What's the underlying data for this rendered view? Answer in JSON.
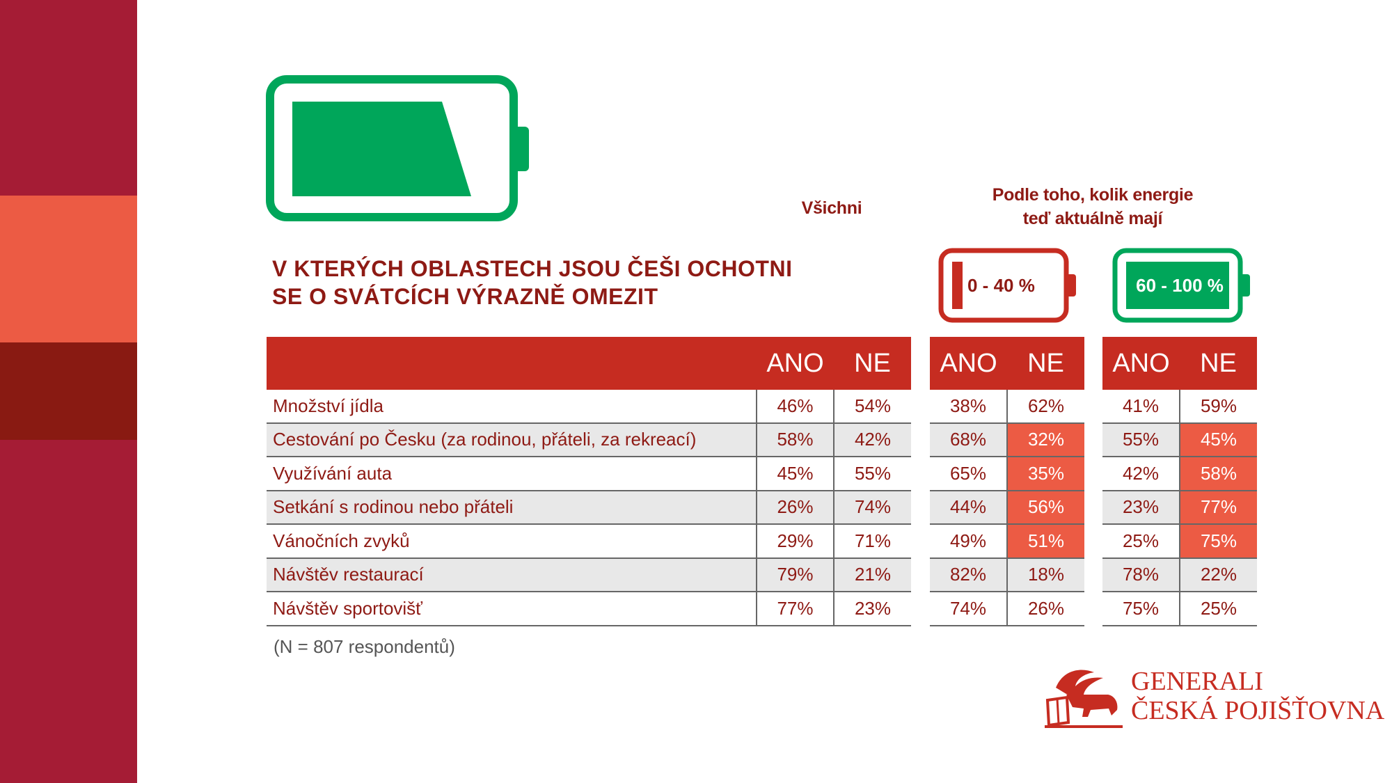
{
  "colors": {
    "sidebar_red": "#A51C35",
    "sidebar_coral": "#EC5B44",
    "sidebar_dark": "#891A12",
    "battery_green": "#00A65A",
    "header_red": "#C62C21",
    "text_dark_red": "#8E1A14",
    "highlight": "#EC5B44",
    "row_alt": "#E8E8E8"
  },
  "headers": {
    "all": "Všichni",
    "by_energy_line1": "Podle toho, kolik energie",
    "by_energy_line2": "teď aktuálně mají"
  },
  "title": {
    "line1": "V KTERÝCH OBLASTECH JSOU ČEŠI OCHOTNI",
    "line2": "SE O SVÁTCÍCH VÝRAZNĚ OMEZIT"
  },
  "batteries": {
    "low_label": "0 - 40 %",
    "high_label": "60 - 100 %"
  },
  "table": {
    "ano": "ANO",
    "ne": "NE",
    "rows": [
      {
        "label": "Množství jídla",
        "all_ano": "46%",
        "all_ne": "54%",
        "low_ano": "38%",
        "low_ne": "62%",
        "high_ano": "41%",
        "high_ne": "59%",
        "hl_low_ne": false,
        "hl_high_ne": false
      },
      {
        "label": "Cestování po Česku (za rodinou, přáteli, za rekreací)",
        "all_ano": "58%",
        "all_ne": "42%",
        "low_ano": "68%",
        "low_ne": "32%",
        "high_ano": "55%",
        "high_ne": "45%",
        "hl_low_ne": true,
        "hl_high_ne": true
      },
      {
        "label": "Využívání auta",
        "all_ano": "45%",
        "all_ne": "55%",
        "low_ano": "65%",
        "low_ne": "35%",
        "high_ano": "42%",
        "high_ne": "58%",
        "hl_low_ne": true,
        "hl_high_ne": true
      },
      {
        "label": "Setkání s rodinou nebo přáteli",
        "all_ano": "26%",
        "all_ne": "74%",
        "low_ano": "44%",
        "low_ne": "56%",
        "high_ano": "23%",
        "high_ne": "77%",
        "hl_low_ne": true,
        "hl_high_ne": true
      },
      {
        "label": "Vánočních zvyků",
        "all_ano": "29%",
        "all_ne": "71%",
        "low_ano": "49%",
        "low_ne": "51%",
        "high_ano": "25%",
        "high_ne": "75%",
        "hl_low_ne": true,
        "hl_high_ne": true
      },
      {
        "label": "Návštěv restaurací",
        "all_ano": "79%",
        "all_ne": "21%",
        "low_ano": "82%",
        "low_ne": "18%",
        "high_ano": "78%",
        "high_ne": "22%",
        "hl_low_ne": false,
        "hl_high_ne": false
      },
      {
        "label": "Návštěv sportovišť",
        "all_ano": "77%",
        "all_ne": "23%",
        "low_ano": "74%",
        "low_ne": "26%",
        "high_ano": "75%",
        "high_ne": "25%",
        "hl_low_ne": false,
        "hl_high_ne": false
      }
    ]
  },
  "footnote": "(N = 807 respondentů)",
  "logo": {
    "line1": "GENERALI",
    "line2": "ČESKÁ POJIŠŤOVNA",
    "icon": "lion-icon"
  }
}
